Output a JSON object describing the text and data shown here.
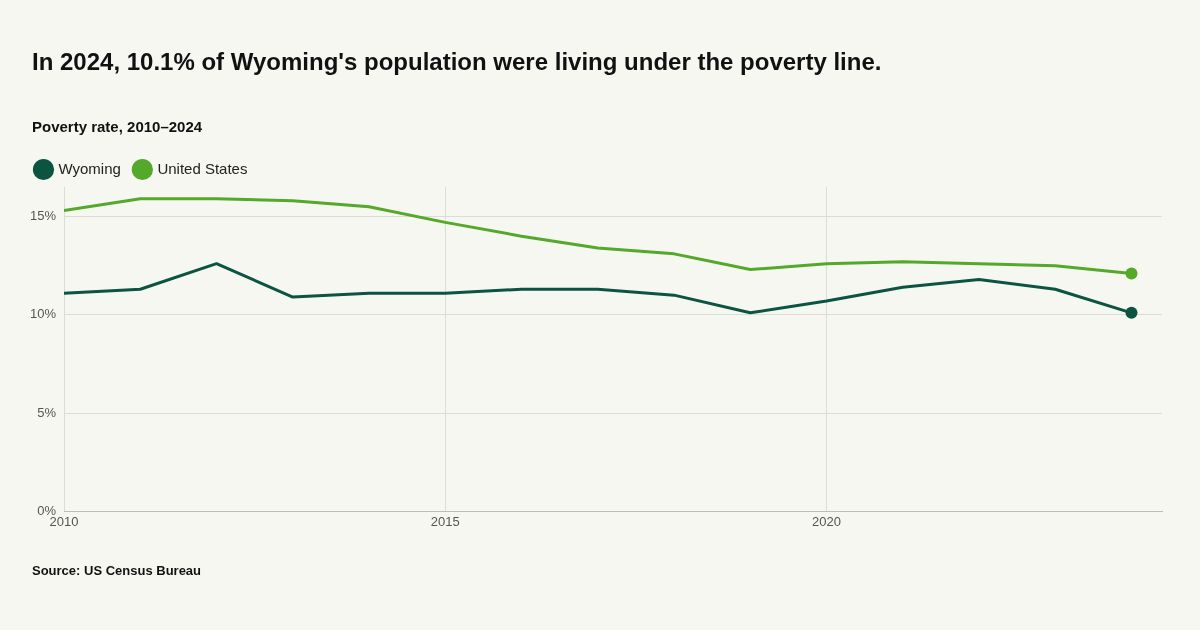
{
  "chart_data": {
    "type": "line",
    "title": "In 2024, 10.1% of Wyoming's population were living under the poverty line.",
    "subtitle": "Poverty rate, 2010–2024",
    "annotations": [
      "Source: US Census Bureau"
    ],
    "x": [
      2010,
      2011,
      2012,
      2013,
      2014,
      2015,
      2016,
      2017,
      2018,
      2019,
      2020,
      2021,
      2022,
      2023,
      2024
    ],
    "series": [
      {
        "name": "Wyoming",
        "color": "#0b5441",
        "values": [
          11.1,
          11.3,
          12.6,
          10.9,
          11.1,
          11.1,
          11.3,
          11.3,
          11.0,
          10.1,
          10.7,
          11.4,
          11.8,
          11.3,
          10.1
        ]
      },
      {
        "name": "United States",
        "color": "#54a82a",
        "values": [
          15.3,
          15.9,
          15.9,
          15.8,
          15.5,
          14.7,
          14.0,
          13.4,
          13.1,
          12.3,
          12.6,
          12.7,
          12.6,
          12.5,
          12.1
        ]
      }
    ],
    "xlim": [
      2010,
      2024.4
    ],
    "xticks": [
      2010,
      2015,
      2020
    ],
    "ylim": [
      0,
      16.5
    ],
    "yticks": [
      {
        "value": 0,
        "label": "0%"
      },
      {
        "value": 5,
        "label": "5%"
      },
      {
        "value": 10,
        "label": "10%"
      },
      {
        "value": 15,
        "label": "15%"
      }
    ],
    "grid": true,
    "legend": "top left",
    "line_style": "solid"
  }
}
